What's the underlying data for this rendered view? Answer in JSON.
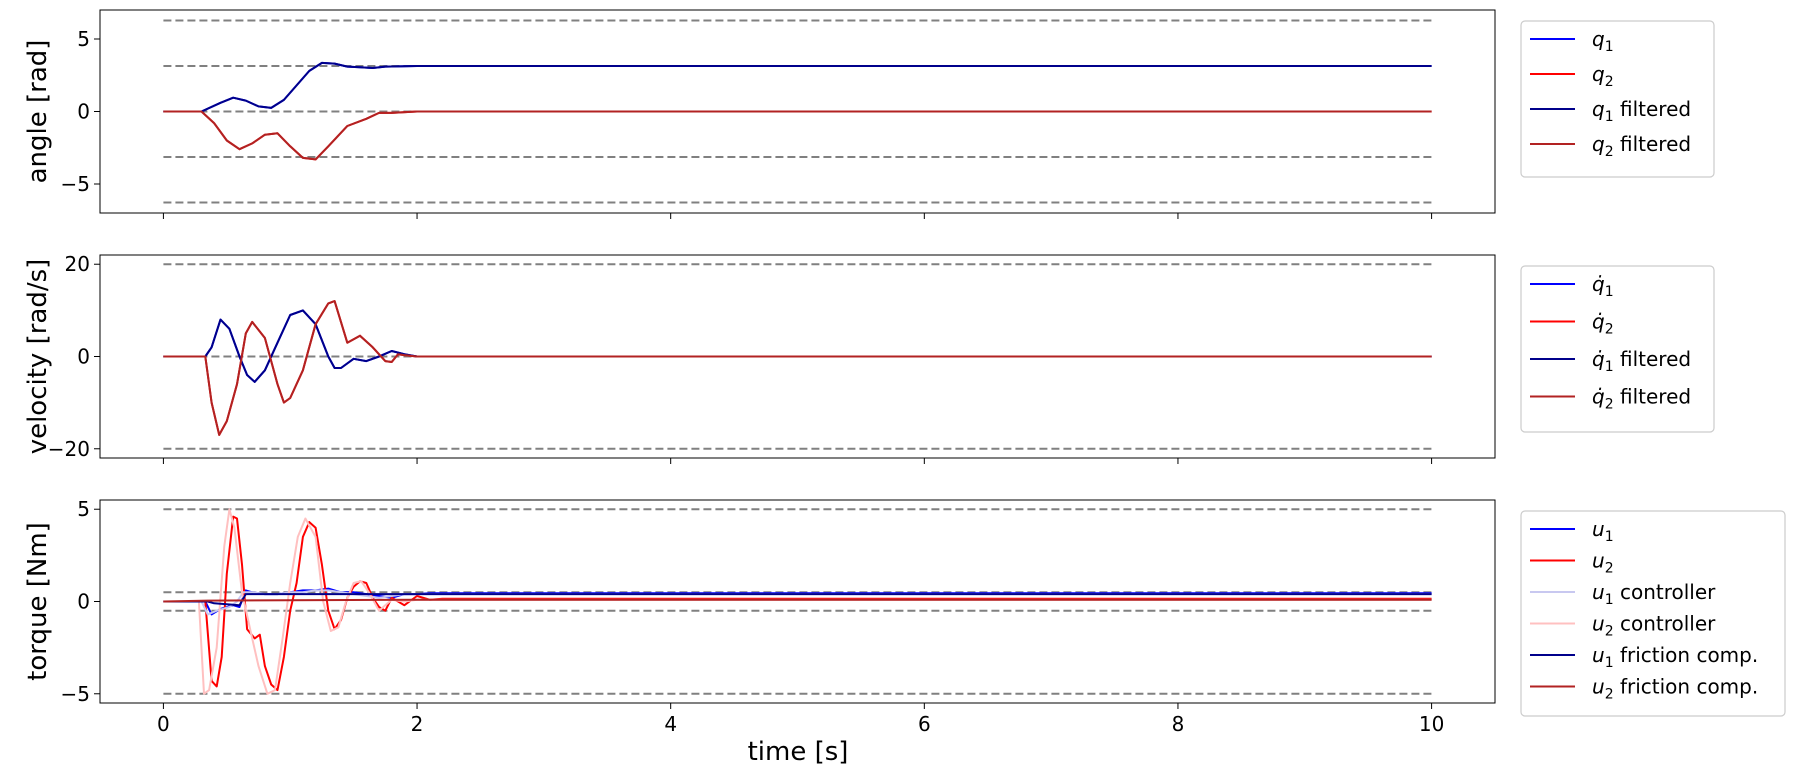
{
  "chart_data": [
    {
      "type": "line",
      "ylabel": "angle [rad]",
      "xlabel": "",
      "xlim": [
        -0.5,
        10.5
      ],
      "ylim": [
        -7.0,
        7.0
      ],
      "xticks": [
        0,
        2,
        4,
        6,
        8,
        10
      ],
      "xtick_labels": [
        "0",
        "2",
        "4",
        "6",
        "8",
        "10"
      ],
      "yticks": [
        5,
        0,
        -5
      ],
      "ytick_labels": [
        "5",
        "0",
        "−5"
      ],
      "legend_position": "outside-right-top",
      "reference_lines": [
        6.28,
        3.14,
        0,
        -3.14,
        -6.28
      ],
      "reference_color": "#808080",
      "series": [
        {
          "name": "q",
          "subscript": "1",
          "suffix": "",
          "color": "#0000ff",
          "x": [
            0,
            0.3,
            0.45,
            0.55,
            0.65,
            0.75,
            0.85,
            0.95,
            1.05,
            1.15,
            1.25,
            1.35,
            1.45,
            1.55,
            1.65,
            1.75,
            2,
            10
          ],
          "y": [
            0,
            0,
            0.6,
            0.95,
            0.75,
            0.35,
            0.25,
            0.8,
            1.8,
            2.8,
            3.35,
            3.3,
            3.1,
            3.05,
            3.0,
            3.1,
            3.14,
            3.14
          ]
        },
        {
          "name": "q",
          "subscript": "2",
          "suffix": "",
          "color": "#ff0000",
          "x": [
            0,
            0.3,
            0.4,
            0.5,
            0.6,
            0.7,
            0.8,
            0.9,
            1.0,
            1.1,
            1.2,
            1.3,
            1.45,
            1.6,
            1.7,
            1.8,
            2,
            10
          ],
          "y": [
            0,
            0,
            -0.8,
            -2.0,
            -2.6,
            -2.2,
            -1.6,
            -1.5,
            -2.4,
            -3.2,
            -3.3,
            -2.4,
            -1.0,
            -0.5,
            -0.1,
            -0.1,
            0,
            0
          ]
        },
        {
          "name": "q",
          "subscript": "1",
          "suffix": "filtered",
          "color": "#00008b",
          "x": [
            0,
            0.3,
            0.45,
            0.55,
            0.65,
            0.75,
            0.85,
            0.95,
            1.05,
            1.15,
            1.25,
            1.35,
            1.45,
            1.55,
            1.65,
            1.75,
            2,
            10
          ],
          "y": [
            0,
            0,
            0.6,
            0.95,
            0.75,
            0.35,
            0.25,
            0.8,
            1.8,
            2.8,
            3.35,
            3.3,
            3.1,
            3.05,
            3.0,
            3.1,
            3.14,
            3.14
          ]
        },
        {
          "name": "q",
          "subscript": "2",
          "suffix": "filtered",
          "color": "#b22222",
          "x": [
            0,
            0.3,
            0.4,
            0.5,
            0.6,
            0.7,
            0.8,
            0.9,
            1.0,
            1.1,
            1.2,
            1.3,
            1.45,
            1.6,
            1.7,
            1.8,
            2,
            10
          ],
          "y": [
            0,
            0,
            -0.8,
            -2.0,
            -2.6,
            -2.2,
            -1.6,
            -1.5,
            -2.4,
            -3.2,
            -3.3,
            -2.4,
            -1.0,
            -0.5,
            -0.1,
            -0.1,
            0,
            0
          ]
        }
      ]
    },
    {
      "type": "line",
      "ylabel": "velocity [rad/s]",
      "xlabel": "",
      "xlim": [
        -0.5,
        10.5
      ],
      "ylim": [
        -22,
        22
      ],
      "xticks": [
        0,
        2,
        4,
        6,
        8,
        10
      ],
      "xtick_labels": [
        "0",
        "2",
        "4",
        "6",
        "8",
        "10"
      ],
      "yticks": [
        20,
        0,
        -20
      ],
      "ytick_labels": [
        "20",
        "0",
        "−20"
      ],
      "legend_position": "outside-right-top",
      "reference_lines": [
        20,
        0,
        -20
      ],
      "reference_color": "#808080",
      "series": [
        {
          "name": "q̇",
          "subscript": "1",
          "suffix": "",
          "color": "#0000ff",
          "x": [
            0,
            0.33,
            0.38,
            0.45,
            0.52,
            0.6,
            0.66,
            0.72,
            0.8,
            0.9,
            1.0,
            1.1,
            1.2,
            1.3,
            1.35,
            1.4,
            1.5,
            1.6,
            1.7,
            1.8,
            1.9,
            2.0,
            2.2,
            10
          ],
          "y": [
            0,
            0,
            2,
            8,
            6,
            0,
            -4,
            -5.5,
            -3,
            3,
            9,
            10,
            7,
            0,
            -2.5,
            -2.5,
            -0.5,
            -1.0,
            0,
            1.2,
            0.5,
            0,
            0,
            0
          ]
        },
        {
          "name": "q̇",
          "subscript": "2",
          "suffix": "",
          "color": "#ff0000",
          "x": [
            0,
            0.33,
            0.38,
            0.44,
            0.5,
            0.58,
            0.65,
            0.7,
            0.8,
            0.9,
            0.95,
            1.0,
            1.1,
            1.2,
            1.3,
            1.35,
            1.45,
            1.55,
            1.65,
            1.75,
            1.8,
            1.85,
            1.9,
            2.0,
            2.2,
            10
          ],
          "y": [
            0,
            0,
            -10,
            -17,
            -14,
            -6,
            5,
            7.5,
            4,
            -6,
            -10,
            -9,
            -3,
            7,
            11.5,
            12,
            3,
            4.5,
            2,
            -1,
            -1.2,
            0.5,
            0.3,
            0,
            0,
            0
          ]
        },
        {
          "name": "q̇",
          "subscript": "1",
          "suffix": "filtered",
          "color": "#00008b",
          "x": [
            0,
            0.33,
            0.38,
            0.45,
            0.52,
            0.6,
            0.66,
            0.72,
            0.8,
            0.9,
            1.0,
            1.1,
            1.2,
            1.3,
            1.35,
            1.4,
            1.5,
            1.6,
            1.7,
            1.8,
            1.9,
            2.0,
            2.2,
            10
          ],
          "y": [
            0,
            0,
            2,
            8,
            6,
            0,
            -4,
            -5.5,
            -3,
            3,
            9,
            10,
            7,
            0,
            -2.5,
            -2.5,
            -0.5,
            -1.0,
            0,
            1.2,
            0.5,
            0,
            0,
            0
          ]
        },
        {
          "name": "q̇",
          "subscript": "2",
          "suffix": "filtered",
          "color": "#b22222",
          "x": [
            0,
            0.33,
            0.38,
            0.44,
            0.5,
            0.58,
            0.65,
            0.7,
            0.8,
            0.9,
            0.95,
            1.0,
            1.1,
            1.2,
            1.3,
            1.35,
            1.45,
            1.55,
            1.65,
            1.75,
            1.8,
            1.85,
            1.9,
            2.0,
            2.2,
            10
          ],
          "y": [
            0,
            0,
            -10,
            -17,
            -14,
            -6,
            5,
            7.5,
            4,
            -6,
            -10,
            -9,
            -3,
            7,
            11.5,
            12,
            3,
            4.5,
            2,
            -1,
            -1.2,
            0.5,
            0.3,
            0,
            0,
            0
          ]
        }
      ]
    },
    {
      "type": "line",
      "ylabel": "torque [Nm]",
      "xlabel": "time [s]",
      "xlim": [
        -0.5,
        10.5
      ],
      "ylim": [
        -5.5,
        5.5
      ],
      "xticks": [
        0,
        2,
        4,
        6,
        8,
        10
      ],
      "xtick_labels": [
        "0",
        "2",
        "4",
        "6",
        "8",
        "10"
      ],
      "yticks": [
        5,
        0,
        -5
      ],
      "ytick_labels": [
        "5",
        "0",
        "−5"
      ],
      "legend_position": "outside-right-top",
      "reference_lines": [
        5,
        0.5,
        -0.5,
        -5
      ],
      "reference_color": "#808080",
      "series": [
        {
          "name": "u",
          "subscript": "1",
          "suffix": "",
          "color": "#0000ff",
          "x": [
            0,
            0.33,
            0.38,
            0.45,
            0.55,
            0.6,
            0.65,
            0.7,
            0.8,
            0.9,
            1.0,
            1.1,
            1.2,
            1.3,
            1.4,
            1.5,
            1.6,
            1.7,
            1.8,
            1.9,
            2.0,
            2.1,
            10
          ],
          "y": [
            0,
            0,
            -0.7,
            -0.4,
            -0.2,
            -0.3,
            0.6,
            0.5,
            0.4,
            0.4,
            0.5,
            0.6,
            0.6,
            0.7,
            0.5,
            0.5,
            0.4,
            0.3,
            0.2,
            0.4,
            0.4,
            0.45,
            0.45
          ]
        },
        {
          "name": "u",
          "subscript": "2",
          "suffix": "",
          "color": "#ff0000",
          "x": [
            0,
            0.33,
            0.38,
            0.42,
            0.46,
            0.5,
            0.55,
            0.58,
            0.62,
            0.66,
            0.72,
            0.76,
            0.8,
            0.85,
            0.9,
            0.95,
            1.0,
            1.05,
            1.1,
            1.15,
            1.2,
            1.25,
            1.3,
            1.35,
            1.4,
            1.45,
            1.5,
            1.55,
            1.6,
            1.65,
            1.7,
            1.75,
            1.8,
            1.9,
            2.0,
            2.1,
            2.2,
            10
          ],
          "y": [
            0,
            0,
            -4.3,
            -4.6,
            -3.0,
            1.5,
            4.6,
            4.5,
            2.0,
            -1.5,
            -2.0,
            -1.8,
            -3.5,
            -4.5,
            -4.8,
            -3.0,
            -0.5,
            1.0,
            3.5,
            4.3,
            4.0,
            2.0,
            -0.5,
            -1.5,
            -1.0,
            0.2,
            0.8,
            1.1,
            1.0,
            0.2,
            -0.3,
            -0.5,
            0.2,
            -0.2,
            0.3,
            0.1,
            0.15,
            0.15
          ]
        },
        {
          "name": "u",
          "subscript": "1",
          "suffix": "controller",
          "color": "#c8c8f0",
          "x": [
            0,
            0.3,
            0.35,
            0.42,
            0.52,
            0.58,
            0.63,
            0.7,
            0.8,
            0.9,
            1.0,
            1.1,
            1.2,
            1.3,
            1.4,
            1.5,
            1.6,
            1.7,
            1.8,
            1.9,
            2.0,
            10
          ],
          "y": [
            0,
            0,
            -0.7,
            -0.5,
            -0.3,
            0.0,
            0.5,
            0.5,
            0.4,
            0.4,
            0.5,
            0.5,
            0.6,
            0.6,
            0.5,
            0.4,
            0.3,
            0.2,
            0.3,
            0.4,
            0.4,
            0.4
          ]
        },
        {
          "name": "u",
          "subscript": "2",
          "suffix": "controller",
          "color": "#ffc0c0",
          "x": [
            0,
            0.28,
            0.32,
            0.36,
            0.42,
            0.48,
            0.52,
            0.56,
            0.62,
            0.7,
            0.75,
            0.82,
            0.88,
            0.94,
            1.0,
            1.06,
            1.12,
            1.2,
            1.26,
            1.32,
            1.38,
            1.44,
            1.5,
            1.56,
            1.62,
            1.7,
            1.8,
            1.9,
            2.0,
            10
          ],
          "y": [
            0,
            0,
            -5.0,
            -4.8,
            -2.5,
            3.0,
            5.0,
            4.0,
            0.5,
            -2.0,
            -3.5,
            -5.0,
            -4.8,
            -2.0,
            1.0,
            3.5,
            4.5,
            3.5,
            0.0,
            -1.6,
            -1.4,
            0.0,
            1.0,
            1.1,
            0.5,
            -0.5,
            0.1,
            0.0,
            0.1,
            0.1
          ]
        },
        {
          "name": "u",
          "subscript": "1",
          "suffix": "friction comp.",
          "color": "#00008b",
          "x": [
            0,
            0.35,
            0.4,
            0.6,
            0.65,
            2.0,
            10
          ],
          "y": [
            0,
            0,
            -0.1,
            -0.2,
            0.4,
            0.4,
            0.4
          ]
        },
        {
          "name": "u",
          "subscript": "2",
          "suffix": "friction comp.",
          "color": "#b22222",
          "x": [
            0,
            0.35,
            2.0,
            10
          ],
          "y": [
            0,
            0.05,
            0.1,
            0.1
          ]
        }
      ]
    }
  ]
}
